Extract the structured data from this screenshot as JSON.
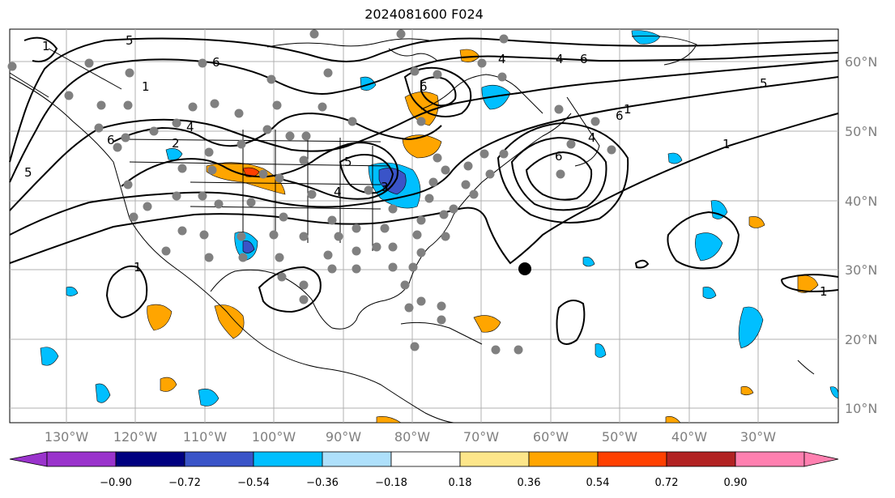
{
  "title": "2024081600 F024",
  "lon_labels": [
    "130°W",
    "120°W",
    "110°W",
    "100°W",
    "90°W",
    "80°W",
    "70°W",
    "60°W",
    "50°W",
    "40°W",
    "30°W"
  ],
  "lat_labels": [
    "60°N",
    "50°N",
    "40°N",
    "30°N",
    "20°N",
    "10°N"
  ],
  "colorbar": {
    "tick_labels": [
      "−0.90",
      "−0.72",
      "−0.54",
      "−0.36",
      "−0.18",
      "0.18",
      "0.36",
      "0.54",
      "0.72",
      "0.90"
    ],
    "colors": [
      "#9a33cc",
      "#000080",
      "#3a54c8",
      "#00bfff",
      "#aee0fb",
      "#ffffff",
      "#fde68a",
      "#ffa500",
      "#ff4000",
      "#b22222",
      "#ff80b0"
    ]
  },
  "contour_labels": [
    "1",
    "5",
    "6",
    "4",
    "6",
    "5",
    "4",
    "6",
    "5",
    "1",
    "2",
    "4",
    "6",
    "5",
    "4",
    "3",
    "6",
    "1",
    "1",
    "1",
    "1",
    "4",
    "6"
  ],
  "colors": {
    "land_border": "#000000",
    "station": "#808080",
    "grid": "#b0b0b0"
  }
}
